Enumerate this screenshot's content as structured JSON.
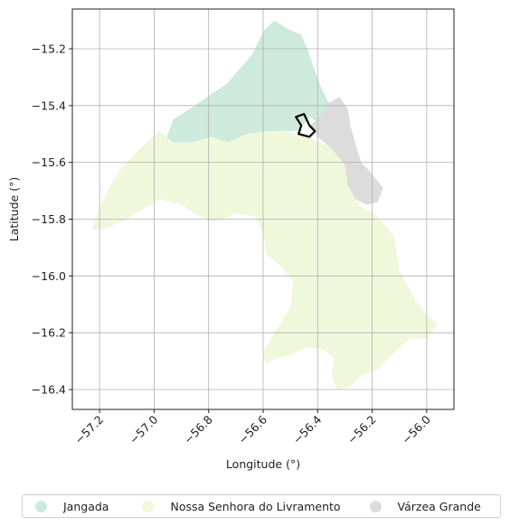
{
  "chart_data": {
    "type": "choropleth-map",
    "xlabel": "Longitude (°)",
    "ylabel": "Latitude (°)",
    "xlim": [
      -57.3,
      -55.9
    ],
    "ylim": [
      -16.47,
      -15.06
    ],
    "xticks": [
      -57.2,
      -57.0,
      -56.8,
      -56.6,
      -56.4,
      -56.2,
      -56.0
    ],
    "xtick_labels": [
      "−57.2",
      "−57.0",
      "−56.8",
      "−56.6",
      "−56.4",
      "−56.2",
      "−56.0"
    ],
    "yticks": [
      -15.2,
      -15.4,
      -15.6,
      -15.8,
      -16.0,
      -16.2,
      -16.4
    ],
    "ytick_labels": [
      "−15.2",
      "−15.4",
      "−15.6",
      "−15.8",
      "−16.0",
      "−16.2",
      "−16.4"
    ],
    "grid": true,
    "legend_position": "bottom",
    "regions": [
      {
        "name": "Jangada",
        "color": "#cdeadc",
        "polygon": [
          [
            -56.51,
            -15.13
          ],
          [
            -56.46,
            -15.15
          ],
          [
            -56.43,
            -15.22
          ],
          [
            -56.41,
            -15.28
          ],
          [
            -56.39,
            -15.33
          ],
          [
            -56.37,
            -15.37
          ],
          [
            -56.35,
            -15.41
          ],
          [
            -56.33,
            -15.44
          ],
          [
            -56.38,
            -15.47
          ],
          [
            -56.43,
            -15.44
          ],
          [
            -56.47,
            -15.49
          ],
          [
            -56.52,
            -15.49
          ],
          [
            -56.59,
            -15.49
          ],
          [
            -56.66,
            -15.5
          ],
          [
            -56.73,
            -15.53
          ],
          [
            -56.79,
            -15.51
          ],
          [
            -56.86,
            -15.53
          ],
          [
            -56.93,
            -15.53
          ],
          [
            -56.97,
            -15.55
          ],
          [
            -56.93,
            -15.45
          ],
          [
            -56.82,
            -15.38
          ],
          [
            -56.73,
            -15.32
          ],
          [
            -56.64,
            -15.22
          ],
          [
            -56.6,
            -15.14
          ],
          [
            -56.56,
            -15.1
          ]
        ]
      },
      {
        "name": "Nossa Senhora do Livramento",
        "color": "#f0f8dc",
        "polygon": [
          [
            -57.23,
            -15.84
          ],
          [
            -57.2,
            -15.76
          ],
          [
            -57.16,
            -15.68
          ],
          [
            -57.12,
            -15.62
          ],
          [
            -57.05,
            -15.55
          ],
          [
            -56.98,
            -15.49
          ],
          [
            -56.93,
            -15.53
          ],
          [
            -56.86,
            -15.53
          ],
          [
            -56.79,
            -15.51
          ],
          [
            -56.73,
            -15.53
          ],
          [
            -56.66,
            -15.5
          ],
          [
            -56.59,
            -15.49
          ],
          [
            -56.52,
            -15.49
          ],
          [
            -56.45,
            -15.51
          ],
          [
            -56.36,
            -15.54
          ],
          [
            -56.29,
            -15.58
          ],
          [
            -56.25,
            -15.65
          ],
          [
            -56.25,
            -15.75
          ],
          [
            -56.18,
            -15.79
          ],
          [
            -56.12,
            -15.86
          ],
          [
            -56.1,
            -15.98
          ],
          [
            -56.05,
            -16.07
          ],
          [
            -56.0,
            -16.14
          ],
          [
            -55.96,
            -16.17
          ],
          [
            -56.0,
            -16.22
          ],
          [
            -56.06,
            -16.22
          ],
          [
            -56.13,
            -16.28
          ],
          [
            -56.18,
            -16.33
          ],
          [
            -56.24,
            -16.35
          ],
          [
            -56.28,
            -16.39
          ],
          [
            -56.33,
            -16.4
          ],
          [
            -56.35,
            -16.35
          ],
          [
            -56.34,
            -16.29
          ],
          [
            -56.38,
            -16.26
          ],
          [
            -56.44,
            -16.25
          ],
          [
            -56.48,
            -16.27
          ],
          [
            -56.55,
            -16.29
          ],
          [
            -56.59,
            -16.31
          ],
          [
            -56.6,
            -16.27
          ],
          [
            -56.56,
            -16.2
          ],
          [
            -56.5,
            -16.11
          ],
          [
            -56.49,
            -16.02
          ],
          [
            -56.53,
            -15.97
          ],
          [
            -56.59,
            -15.92
          ],
          [
            -56.6,
            -15.85
          ],
          [
            -56.63,
            -15.79
          ],
          [
            -56.7,
            -15.78
          ],
          [
            -56.78,
            -15.81
          ],
          [
            -56.85,
            -15.78
          ],
          [
            -56.9,
            -15.75
          ],
          [
            -56.98,
            -15.73
          ],
          [
            -57.05,
            -15.77
          ],
          [
            -57.1,
            -15.8
          ],
          [
            -57.17,
            -15.83
          ]
        ]
      },
      {
        "name": "Várzea Grande",
        "color": "#dcdcdc",
        "polygon": [
          [
            -56.39,
            -15.44
          ],
          [
            -56.36,
            -15.39
          ],
          [
            -56.32,
            -15.37
          ],
          [
            -56.29,
            -15.41
          ],
          [
            -56.28,
            -15.47
          ],
          [
            -56.26,
            -15.54
          ],
          [
            -56.24,
            -15.6
          ],
          [
            -56.21,
            -15.63
          ],
          [
            -56.16,
            -15.69
          ],
          [
            -56.18,
            -15.74
          ],
          [
            -56.22,
            -15.75
          ],
          [
            -56.26,
            -15.73
          ],
          [
            -56.29,
            -15.68
          ],
          [
            -56.3,
            -15.61
          ],
          [
            -56.35,
            -15.55
          ],
          [
            -56.4,
            -15.51
          ],
          [
            -56.43,
            -15.47
          ]
        ]
      }
    ],
    "highlight_outline": {
      "stroke_color": "#000000",
      "polygon": [
        [
          -56.48,
          -15.44
        ],
        [
          -56.45,
          -15.43
        ],
        [
          -56.43,
          -15.47
        ],
        [
          -56.41,
          -15.49
        ],
        [
          -56.43,
          -15.51
        ],
        [
          -56.47,
          -15.5
        ],
        [
          -56.46,
          -15.47
        ]
      ]
    }
  },
  "legend": {
    "items": [
      {
        "label": "Jangada",
        "color": "#cdeadc"
      },
      {
        "label": "Nossa Senhora do Livramento",
        "color": "#f0f8dc"
      },
      {
        "label": "Várzea Grande",
        "color": "#dcdcdc"
      }
    ]
  }
}
